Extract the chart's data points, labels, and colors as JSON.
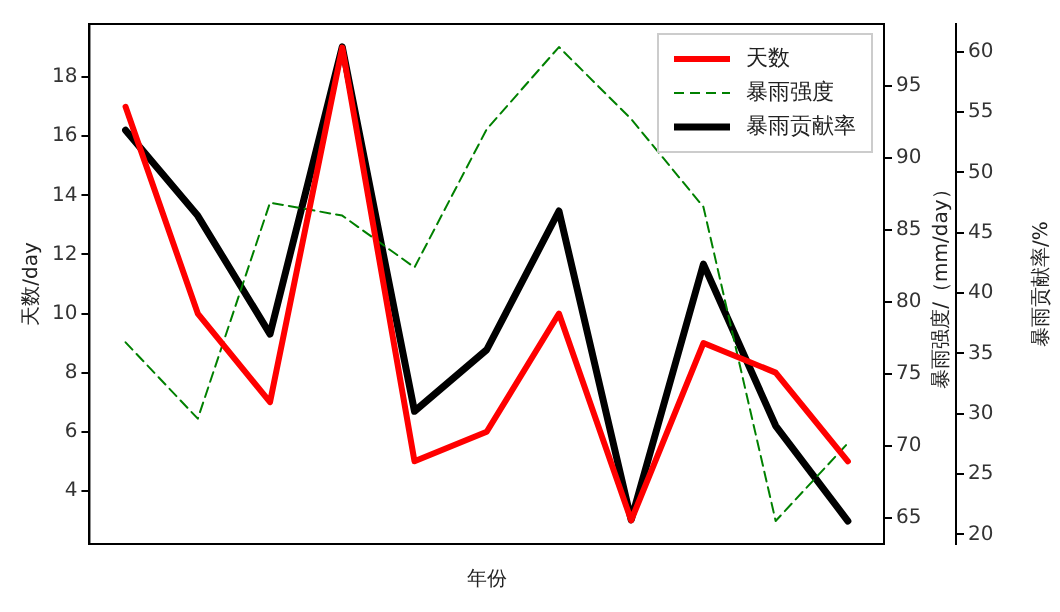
{
  "chart_data": {
    "type": "line",
    "xlabel": "年份",
    "ylabel": "天数/day",
    "y2label": "暴雨强度/（mm/day）",
    "y3label": "暴雨贡献率/%",
    "categories": [
      null,
      null,
      null,
      null,
      null,
      null,
      null,
      null,
      null,
      null,
      null
    ],
    "series": [
      {
        "name": "天数",
        "color": "#ff0000",
        "values": [
          17,
          10,
          7,
          19,
          5,
          6,
          10,
          3,
          9,
          8,
          5
        ]
      },
      {
        "name": "暴雨强度",
        "color": "#008000",
        "axis": "y2",
        "line_style": "dashed",
        "values": [
          77.2,
          71.9,
          86.9,
          86.0,
          82.4,
          92.0,
          97.7,
          92.7,
          86.6,
          64.8,
          70.2
        ]
      },
      {
        "name": "暴雨贡献率",
        "color": "#000000",
        "axis": "y3",
        "values": [
          53.5,
          46.4,
          36.6,
          60.4,
          30.2,
          35.3,
          46.8,
          21.2,
          42.4,
          29.0,
          21.1
        ]
      }
    ],
    "ylim": [
      2.2,
      19.8
    ],
    "yticks": [
      4,
      6,
      8,
      10,
      12,
      14,
      16,
      18
    ],
    "y2lim": [
      63.2,
      99.3
    ],
    "y2ticks": [
      65,
      70,
      75,
      80,
      85,
      90,
      95
    ],
    "y3lim": [
      19.2,
      62.3
    ],
    "y3ticks": [
      20,
      25,
      30,
      35,
      40,
      45,
      50,
      55,
      60
    ],
    "grid": false,
    "legend": "top right",
    "marker": "none",
    "line_style": "solid"
  }
}
